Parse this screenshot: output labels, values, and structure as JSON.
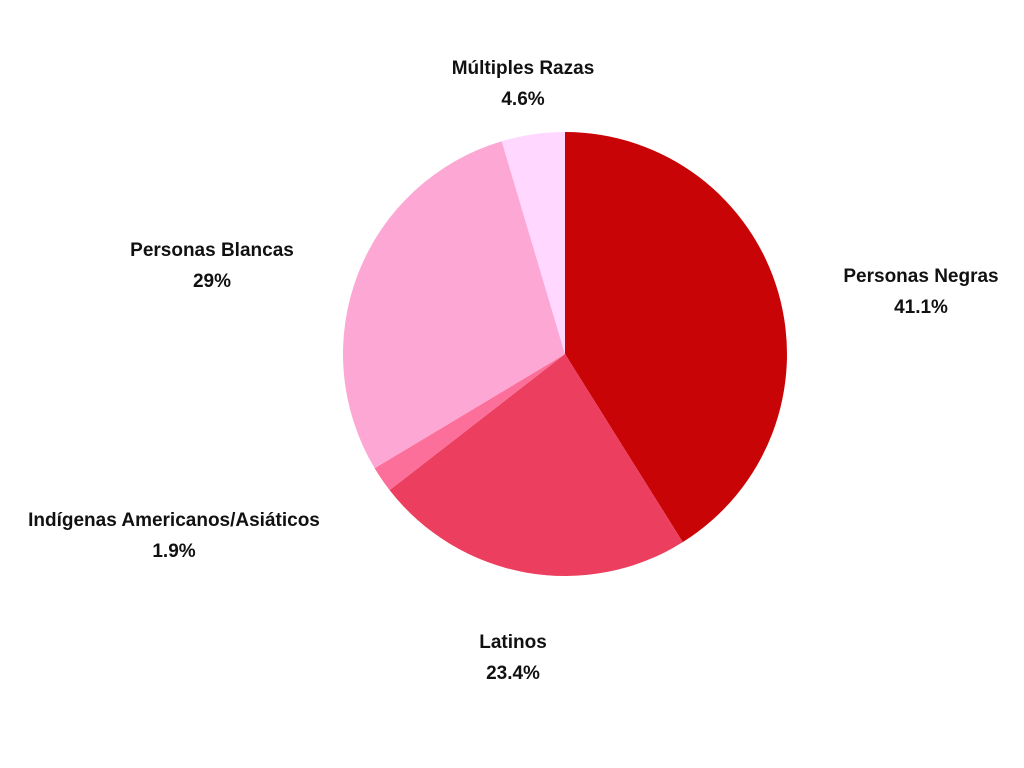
{
  "chart_data": {
    "type": "pie",
    "slices": [
      {
        "label": "Personas Negras",
        "value": 41.1,
        "value_label": "41.1%",
        "color": "#c90406"
      },
      {
        "label": "Latinos",
        "value": 23.4,
        "value_label": "23.4%",
        "color": "#ec3e5e"
      },
      {
        "label": "Indígenas Americanos/Asiáticos",
        "value": 1.9,
        "value_label": "1.9%",
        "color": "#fb6f9a"
      },
      {
        "label": "Personas Blancas",
        "value": 29,
        "value_label": "29%",
        "color": "#fda7d5"
      },
      {
        "label": "Múltiples Razas",
        "value": 4.6,
        "value_label": "4.6%",
        "color": "#ffd7ff"
      }
    ],
    "start_direction": "top",
    "slice_order": "clockwise"
  }
}
